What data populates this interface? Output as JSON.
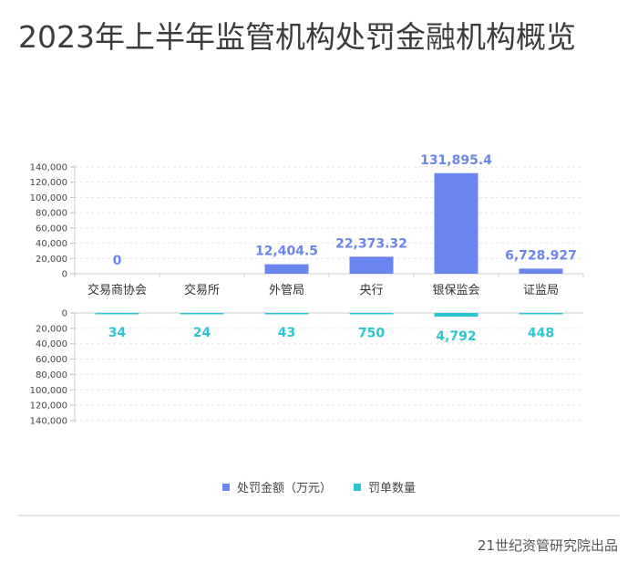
{
  "page": {
    "title": "2023年上半年监管机构处罚金融机构概览",
    "source": "21世纪资管研究院出品"
  },
  "colors": {
    "amount": "#6a86ee",
    "count": "#2ec5d3"
  },
  "chart_data": {
    "type": "bar",
    "categories": [
      "交易商协会",
      "交易所",
      "外管局",
      "央行",
      "银保监会",
      "证监局"
    ],
    "series": [
      {
        "name": "处罚金额（万元）",
        "values": [
          0,
          null,
          12404.5,
          22373.32,
          131895.4,
          6728.927
        ],
        "labels": [
          "0",
          "",
          "12,404.5",
          "22,373.32",
          "131,895.4",
          "6,728.927"
        ]
      },
      {
        "name": "罚单数量",
        "values": [
          34,
          24,
          43,
          750,
          4792,
          448
        ],
        "labels": [
          "34",
          "24",
          "43",
          "750",
          "4,792",
          "448"
        ]
      }
    ],
    "top_axis": {
      "ylim": [
        0,
        140000
      ],
      "ticks": [
        "0",
        "20,000",
        "40,000",
        "60,000",
        "80,000",
        "100,000",
        "120,000",
        "140,000"
      ]
    },
    "bottom_axis": {
      "ylim": [
        0,
        140000
      ],
      "ticks": [
        "0",
        "20,000",
        "40,000",
        "60,000",
        "80,000",
        "100,000",
        "120,000",
        "140,000"
      ]
    },
    "grid": true,
    "legend": "bottom"
  }
}
